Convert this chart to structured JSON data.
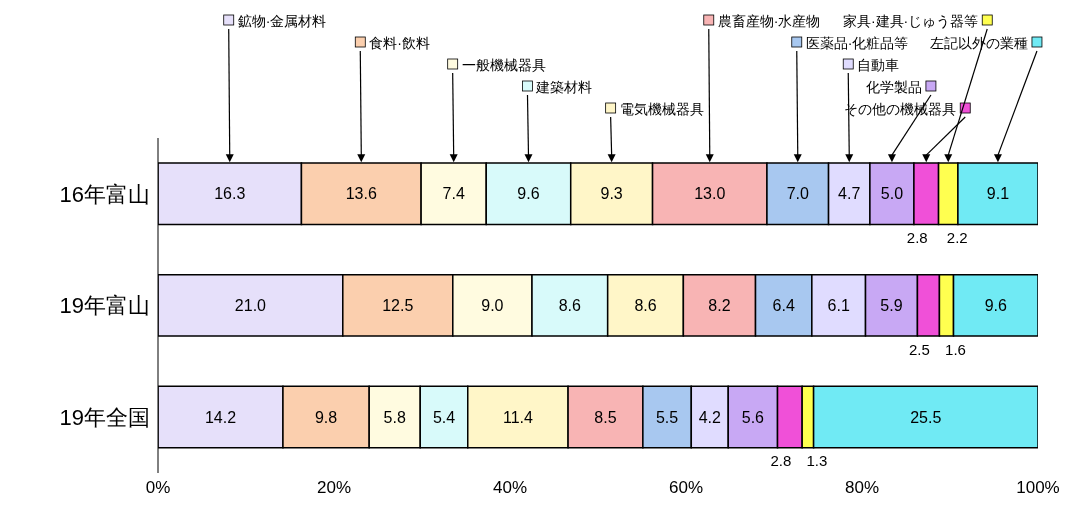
{
  "chart_data": {
    "type": "bar",
    "orientation": "horizontal",
    "stacked": true,
    "categories": [
      "16年富山",
      "19年富山",
      "19年全国"
    ],
    "series": [
      {
        "name": "鉱物·金属材料",
        "color": "#e6e0fa",
        "values": [
          16.3,
          21.0,
          14.2
        ],
        "value_labels": [
          "16.3",
          "21.0",
          "14.2"
        ]
      },
      {
        "name": "食料·飲料",
        "color": "#fbcfae",
        "values": [
          13.6,
          12.5,
          9.8
        ],
        "value_labels": [
          "13.6",
          "12.5",
          "9.8"
        ]
      },
      {
        "name": "一般機械器具",
        "color": "#fffbe0",
        "values": [
          7.4,
          9.0,
          5.8
        ],
        "value_labels": [
          "7.4",
          "9.0",
          "5.8"
        ]
      },
      {
        "name": "建築材料",
        "color": "#d8fafa",
        "values": [
          9.6,
          8.6,
          5.4
        ],
        "value_labels": [
          "9.6",
          "8.6",
          "5.4"
        ]
      },
      {
        "name": "電気機械器具",
        "color": "#fff6c8",
        "values": [
          9.3,
          8.6,
          11.4
        ],
        "value_labels": [
          "9.3",
          "8.6",
          "11.4"
        ]
      },
      {
        "name": "農畜産物·水産物",
        "color": "#f8b4b4",
        "values": [
          13.0,
          8.2,
          8.5
        ],
        "value_labels": [
          "13.0",
          "8.2",
          "8.5"
        ]
      },
      {
        "name": "医薬品·化粧品等",
        "color": "#a8c8f0",
        "values": [
          7.0,
          6.4,
          5.5
        ],
        "value_labels": [
          "7.0",
          "6.4",
          "5.5"
        ]
      },
      {
        "name": "自動車",
        "color": "#e0dcff",
        "values": [
          4.7,
          6.1,
          4.2
        ],
        "value_labels": [
          "4.7",
          "6.1",
          "4.2"
        ]
      },
      {
        "name": "化学製品",
        "color": "#c8a8f4",
        "values": [
          5.0,
          5.9,
          5.6
        ],
        "value_labels": [
          "5.0",
          "5.9",
          "5.6"
        ]
      },
      {
        "name": "その他の機械器具",
        "color": "#f050d8",
        "values": [
          2.8,
          2.5,
          2.8
        ],
        "value_labels": [
          "2.8",
          "2.5",
          "2.8"
        ]
      },
      {
        "name": "家具·建具·じゅう器等",
        "color": "#ffff50",
        "values": [
          2.2,
          1.6,
          1.3
        ],
        "value_labels": [
          "2.2",
          "1.6",
          "1.3"
        ]
      },
      {
        "name": "左記以外の業種",
        "color": "#70eaf4",
        "values": [
          9.1,
          9.6,
          25.5
        ],
        "value_labels": [
          "9.1",
          "9.6",
          "25.5"
        ]
      }
    ],
    "legend": "top",
    "xlim": [
      0,
      100
    ],
    "xticks": [
      {
        "value": 0,
        "label": "0%"
      },
      {
        "value": 20,
        "label": "20%"
      },
      {
        "value": 40,
        "label": "40%"
      },
      {
        "value": 60,
        "label": "60%"
      },
      {
        "value": 80,
        "label": "80%"
      },
      {
        "value": 100,
        "label": "100%"
      }
    ]
  }
}
